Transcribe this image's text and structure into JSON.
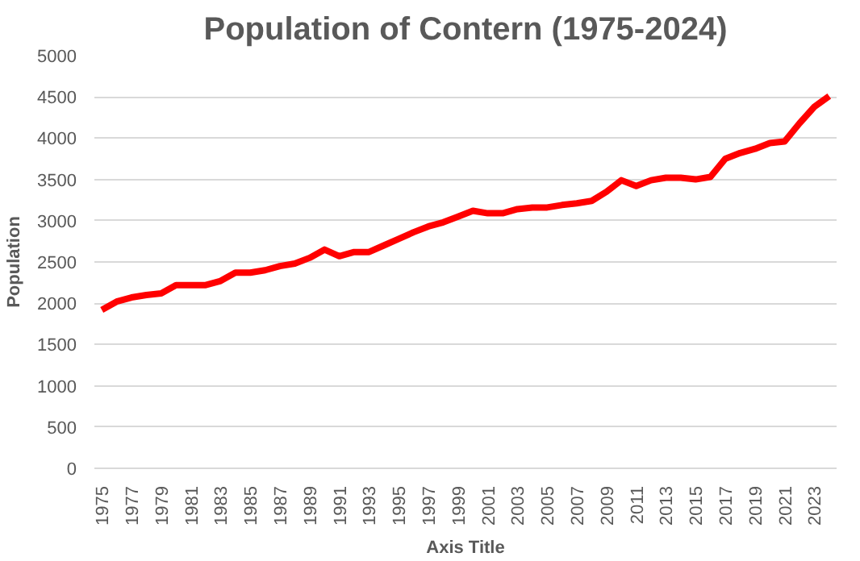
{
  "chart_data": {
    "type": "line",
    "title": "Population of Contern (1975-2024)",
    "xlabel": "Axis Title",
    "ylabel": "Population",
    "categories": [
      "1975",
      null,
      "1977",
      null,
      "1979",
      null,
      "1981",
      null,
      "1983",
      null,
      "1985",
      null,
      "1987",
      null,
      "1989",
      null,
      "1991",
      null,
      "1993",
      null,
      "1995",
      null,
      "1997",
      null,
      "1999",
      null,
      "2001",
      null,
      "2003",
      null,
      "2005",
      null,
      "2007",
      null,
      "2009",
      null,
      "2011",
      null,
      "2013",
      null,
      "2015",
      null,
      "2017",
      null,
      "2019",
      null,
      "2021",
      null,
      "2023",
      null
    ],
    "series": [
      {
        "color": "#ff0000",
        "values": [
          1920,
          2020,
          2070,
          2100,
          2120,
          2220,
          2220,
          2220,
          2270,
          2370,
          2370,
          2400,
          2450,
          2480,
          2550,
          2650,
          2570,
          2620,
          2620,
          2700,
          2780,
          2860,
          2930,
          2980,
          3050,
          3120,
          3090,
          3090,
          3140,
          3160,
          3160,
          3190,
          3210,
          3240,
          3350,
          3490,
          3420,
          3490,
          3520,
          3520,
          3500,
          3530,
          3750,
          3820,
          3870,
          3940,
          3960,
          4180,
          4380,
          4510
        ]
      }
    ],
    "ylim": [
      0,
      5000
    ],
    "yticks": [
      0,
      500,
      1000,
      1500,
      2000,
      2500,
      3000,
      3500,
      4000,
      4500,
      5000
    ],
    "grid": "y",
    "marker": "none",
    "line_style": "solid"
  }
}
